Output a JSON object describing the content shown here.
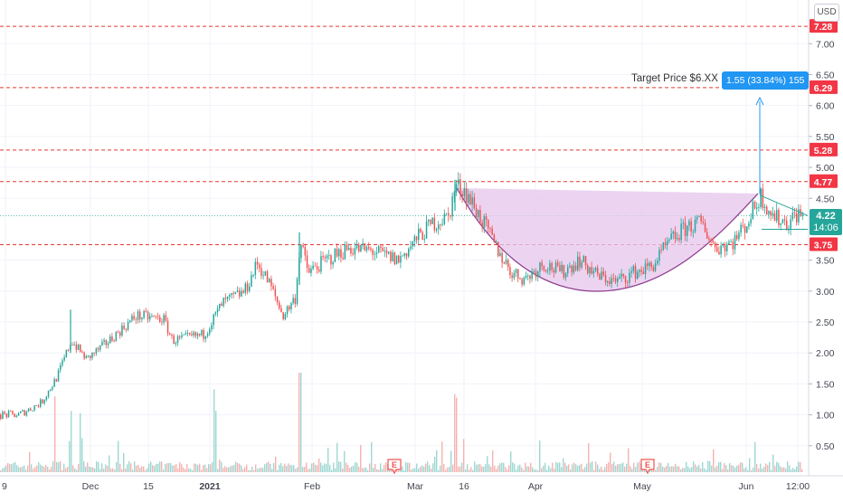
{
  "currency": "USD",
  "annotation": {
    "target_text": "Target Price $6.XX",
    "measure_label": "1.55 (33.84%) 155"
  },
  "current_price": {
    "value": "4.22",
    "time": "14:06"
  },
  "colors": {
    "up": "#26a69a",
    "down": "#ef5350",
    "level_line": "#e53935",
    "level_badge": "#f23645",
    "cup_fill": "#e6c6ec",
    "cup_stroke": "#8e3a8e",
    "measure": "#2196f3",
    "price_badge": "#26a69a"
  },
  "chart_data": {
    "type": "candlestick",
    "y_axis": {
      "ticks": [
        "7.00",
        "6.50",
        "6.00",
        "5.50",
        "5.00",
        "4.50",
        "3.50",
        "3.00",
        "2.50",
        "2.00",
        "1.50",
        "1.00",
        "0.50"
      ],
      "range": [
        0.12,
        7.6
      ]
    },
    "x_axis": {
      "ticks": [
        "9",
        "Dec",
        "15",
        "2021",
        "Feb",
        "Mar",
        "16",
        "Apr",
        "May",
        "Jun",
        "12:00"
      ]
    },
    "levels": [
      7.28,
      6.29,
      5.28,
      4.77,
      3.75
    ],
    "level_labels": [
      "7.28",
      "6.29",
      "5.28",
      "4.77",
      "3.75"
    ],
    "price_path": [
      {
        "d": 0,
        "p": 1.0
      },
      {
        "d": 20,
        "p": 1.0
      },
      {
        "d": 45,
        "p": 1.2
      },
      {
        "d": 62,
        "p": 1.6
      },
      {
        "d": 78,
        "p": 2.2
      },
      {
        "d": 95,
        "p": 1.9
      },
      {
        "d": 120,
        "p": 2.2
      },
      {
        "d": 150,
        "p": 2.6
      },
      {
        "d": 180,
        "p": 2.55
      },
      {
        "d": 190,
        "p": 2.2
      },
      {
        "d": 225,
        "p": 2.3
      },
      {
        "d": 245,
        "p": 2.8
      },
      {
        "d": 270,
        "p": 3.0
      },
      {
        "d": 284,
        "p": 3.45
      },
      {
        "d": 298,
        "p": 3.1
      },
      {
        "d": 312,
        "p": 2.6
      },
      {
        "d": 326,
        "p": 2.9
      },
      {
        "d": 331,
        "p": 3.8
      },
      {
        "d": 340,
        "p": 3.3
      },
      {
        "d": 360,
        "p": 3.5
      },
      {
        "d": 385,
        "p": 3.7
      },
      {
        "d": 410,
        "p": 3.65
      },
      {
        "d": 440,
        "p": 3.5
      },
      {
        "d": 460,
        "p": 3.85
      },
      {
        "d": 478,
        "p": 4.1
      },
      {
        "d": 495,
        "p": 4.2
      },
      {
        "d": 503,
        "p": 4.7
      },
      {
        "d": 512,
        "p": 4.65
      },
      {
        "d": 530,
        "p": 4.2
      },
      {
        "d": 548,
        "p": 3.7
      },
      {
        "d": 565,
        "p": 3.3
      },
      {
        "d": 580,
        "p": 3.2
      },
      {
        "d": 600,
        "p": 3.45
      },
      {
        "d": 620,
        "p": 3.3
      },
      {
        "d": 640,
        "p": 3.5
      },
      {
        "d": 660,
        "p": 3.25
      },
      {
        "d": 680,
        "p": 3.15
      },
      {
        "d": 700,
        "p": 3.3
      },
      {
        "d": 720,
        "p": 3.4
      },
      {
        "d": 740,
        "p": 3.8
      },
      {
        "d": 760,
        "p": 4.05
      },
      {
        "d": 775,
        "p": 4.1
      },
      {
        "d": 790,
        "p": 3.7
      },
      {
        "d": 810,
        "p": 3.8
      },
      {
        "d": 825,
        "p": 4.1
      },
      {
        "d": 840,
        "p": 4.55
      },
      {
        "d": 855,
        "p": 4.2
      },
      {
        "d": 870,
        "p": 4.1
      },
      {
        "d": 880,
        "p": 4.25
      },
      {
        "d": 888,
        "p": 4.22
      }
    ]
  }
}
